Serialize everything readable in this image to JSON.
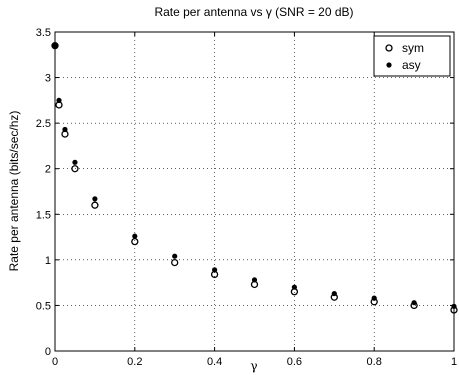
{
  "chart_data": {
    "type": "scatter",
    "title": "Rate per antenna vs γ (SNR = 20 dB)",
    "xlabel": "γ",
    "ylabel": "Rate per antenna (bits/sec/hz)",
    "xlim": [
      0,
      1
    ],
    "ylim": [
      0,
      3.5
    ],
    "xticks": [
      "0",
      "0.2",
      "0.4",
      "0.6",
      "0.8",
      "1"
    ],
    "xtick_values": [
      0,
      0.2,
      0.4,
      0.6,
      0.8,
      1
    ],
    "yticks": [
      "0",
      "0.5",
      "1",
      "1.5",
      "2",
      "2.5",
      "3",
      "3.5"
    ],
    "ytick_values": [
      0,
      0.5,
      1,
      1.5,
      2,
      2.5,
      3,
      3.5
    ],
    "grid": true,
    "legend_position": "top-right",
    "series": [
      {
        "name": "sym",
        "marker": "open-circle",
        "x": [
          0,
          0.01,
          0.025,
          0.05,
          0.1,
          0.2,
          0.3,
          0.4,
          0.5,
          0.6,
          0.7,
          0.8,
          0.9,
          1.0
        ],
        "y": [
          3.35,
          2.7,
          2.38,
          2.0,
          1.6,
          1.2,
          0.97,
          0.84,
          0.73,
          0.65,
          0.59,
          0.54,
          0.5,
          0.45
        ]
      },
      {
        "name": "asy",
        "marker": "filled-dot",
        "x": [
          0,
          0.01,
          0.025,
          0.05,
          0.1,
          0.2,
          0.3,
          0.4,
          0.5,
          0.6,
          0.7,
          0.8,
          0.9,
          1.0
        ],
        "y": [
          3.35,
          2.75,
          2.43,
          2.07,
          1.67,
          1.26,
          1.04,
          0.89,
          0.78,
          0.7,
          0.63,
          0.58,
          0.53,
          0.49
        ]
      }
    ]
  }
}
